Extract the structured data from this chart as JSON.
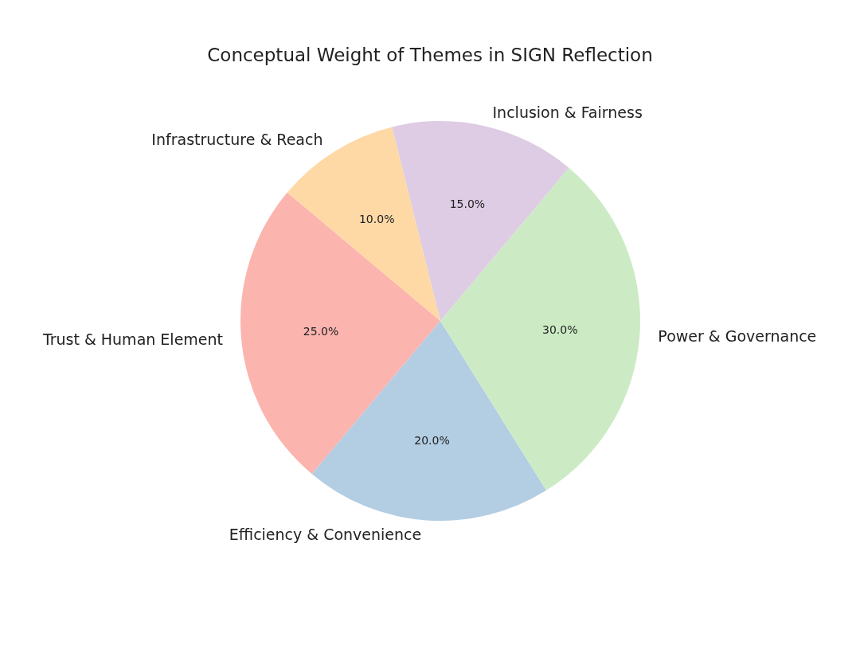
{
  "chart_data": {
    "type": "pie",
    "title": "Conceptual Weight of Themes in SIGN Reflection",
    "categories": [
      "Trust & Human Element",
      "Efficiency & Convenience",
      "Power & Governance",
      "Inclusion & Fairness",
      "Infrastructure & Reach"
    ],
    "values": [
      25,
      20,
      30,
      15,
      10
    ],
    "colors": [
      "#fbb4ae",
      "#b3cde3",
      "#ccebc5",
      "#decbe4",
      "#fed9a6"
    ],
    "value_labels": [
      "25.0%",
      "20.0%",
      "30.0%",
      "15.0%",
      "10.0%"
    ],
    "legend": false
  }
}
